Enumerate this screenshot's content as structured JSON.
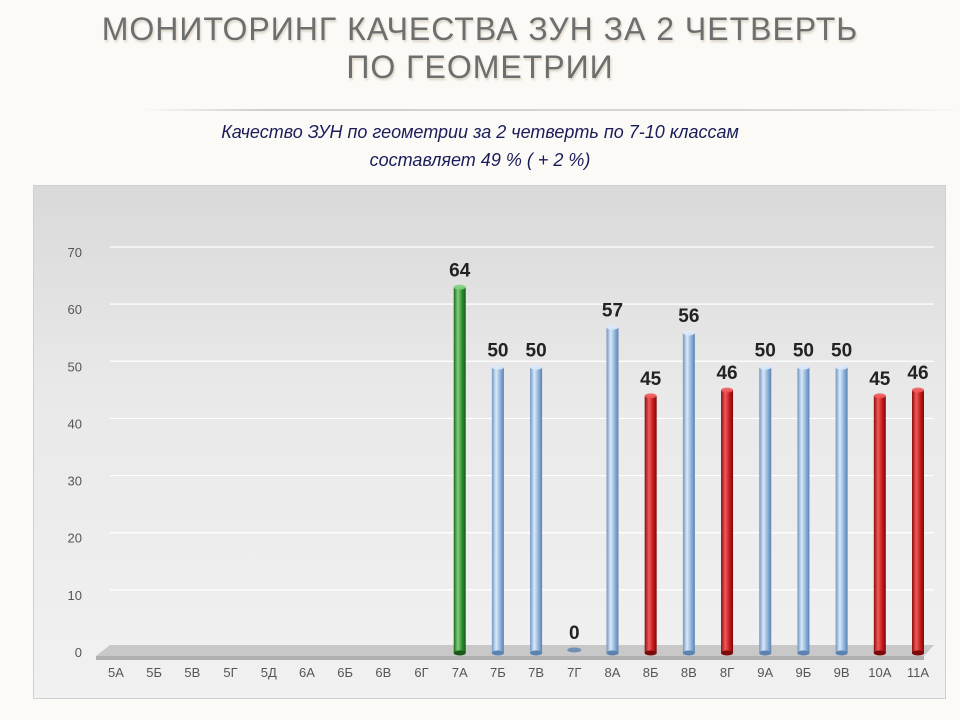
{
  "slide": {
    "title_line1": "Мониторинг качества ЗУН за 2  четверть",
    "title_line2": "по  геометрии",
    "subtitle_line1": "Качество ЗУН по геометрии  за 2 четверть  по 7-10 классам",
    "subtitle_line2": "составляет  49 % ( + 2 %)"
  },
  "colors": {
    "blue": "#8fb4dc",
    "red": "#c41a1a",
    "green": "#2e8b2e",
    "gridline": "#ffffff",
    "axis_text": "#555555",
    "label_text": "#222222"
  },
  "chart_data": {
    "type": "bar",
    "categories": [
      "5А",
      "5Б",
      "5В",
      "5Г",
      "5Д",
      "6А",
      "6Б",
      "6В",
      "6Г",
      "7А",
      "7Б",
      "7В",
      "7Г",
      "8А",
      "8Б",
      "8В",
      "8Г",
      "9А",
      "9Б",
      "9В",
      "10А",
      "11А"
    ],
    "values": [
      null,
      null,
      null,
      null,
      null,
      null,
      null,
      null,
      null,
      64,
      50,
      50,
      0,
      57,
      45,
      56,
      46,
      50,
      50,
      50,
      45,
      46
    ],
    "bar_colors": [
      "",
      "",
      "",
      "",
      "",
      "",
      "",
      "",
      "",
      "green",
      "blue",
      "blue",
      "blue",
      "blue",
      "red",
      "blue",
      "red",
      "blue",
      "blue",
      "blue",
      "red",
      "red"
    ],
    "data_labels": [
      "",
      "",
      "",
      "",
      "",
      "",
      "",
      "",
      "",
      "64",
      "50",
      "50",
      "0",
      "57",
      "45",
      "56",
      "46",
      "50",
      "50",
      "50",
      "45",
      "46"
    ],
    "yticks": [
      0,
      10,
      20,
      30,
      40,
      50,
      60,
      70
    ],
    "ylim": [
      0,
      70
    ],
    "grid": true,
    "legend": "none"
  }
}
